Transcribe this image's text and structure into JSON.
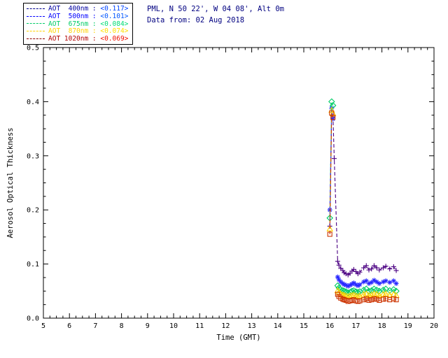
{
  "header": {
    "line1": "PML, N 50 22', W 04 08', Alt 0m",
    "line2": "Data from: 02 Aug 2018",
    "color": "#000080"
  },
  "legend": {
    "entries": [
      {
        "label": "AOT  400nm : ",
        "value": "<0.117>",
        "line_color": "#00008B",
        "label_color": "#0000A0",
        "value_color": "#0044FF"
      },
      {
        "label": "AOT  500nm : ",
        "value": "<0.101>",
        "line_color": "#0000FF",
        "label_color": "#0000FF",
        "value_color": "#0055FF"
      },
      {
        "label": "AOT  675nm : ",
        "value": "<0.084>",
        "line_color": "#00CC66",
        "label_color": "#00CC66",
        "value_color": "#00DD77"
      },
      {
        "label": "AOT  870nm : ",
        "value": "<0.074>",
        "line_color": "#FFD300",
        "label_color": "#FFD300",
        "value_color": "#FFE000"
      },
      {
        "label": "AOT 1020nm : ",
        "value": "<0.069>",
        "line_color": "#8B0000",
        "label_color": "#B00000",
        "value_color": "#EE1100"
      }
    ]
  },
  "chart_data": {
    "type": "line",
    "title": "",
    "xlabel": "Time (GMT)",
    "ylabel": "Aerosol Optical Thickness",
    "xlim": [
      5,
      20
    ],
    "ylim": [
      0.0,
      0.5
    ],
    "grid": false,
    "legend_position": "top-left-outside",
    "xticks": [
      5,
      6,
      7,
      8,
      9,
      10,
      11,
      12,
      13,
      14,
      15,
      16,
      17,
      18,
      19,
      20
    ],
    "xtick_labels": [
      "5",
      "6",
      "7",
      "8",
      "9",
      "10",
      "11",
      "12",
      "13",
      "14",
      "15",
      "16",
      "17",
      "18",
      "19",
      "20"
    ],
    "yticks": [
      0.0,
      0.1,
      0.2,
      0.3,
      0.4,
      0.5
    ],
    "ytick_labels": [
      "0.0",
      "0.1",
      "0.2",
      "0.3",
      "0.4",
      "0.5"
    ],
    "x": [
      16.0,
      16.07,
      16.12,
      16.17,
      16.3,
      16.35,
      16.42,
      16.5,
      16.55,
      16.62,
      16.7,
      16.78,
      16.85,
      16.92,
      17.0,
      17.08,
      17.15,
      17.3,
      17.4,
      17.5,
      17.6,
      17.7,
      17.8,
      17.9,
      18.05,
      18.15,
      18.3,
      18.45,
      18.55
    ],
    "series": [
      {
        "name": "AOT 400nm",
        "mean": "<0.117>",
        "color": "#4B0082",
        "marker": "plus",
        "values": [
          0.17,
          0.38,
          0.372,
          0.295,
          0.105,
          0.098,
          0.092,
          0.088,
          0.084,
          0.082,
          0.08,
          0.083,
          0.087,
          0.09,
          0.086,
          0.082,
          0.085,
          0.093,
          0.097,
          0.089,
          0.091,
          0.097,
          0.093,
          0.089,
          0.093,
          0.096,
          0.091,
          0.095,
          0.088
        ]
      },
      {
        "name": "AOT 500nm",
        "mean": "<0.101>",
        "color": "#2929FF",
        "marker": "asterisk",
        "values": [
          0.2,
          0.388,
          0.368,
          null,
          0.076,
          0.071,
          0.067,
          0.064,
          0.062,
          0.061,
          0.059,
          0.061,
          0.063,
          0.065,
          0.062,
          0.06,
          0.062,
          0.067,
          0.069,
          0.064,
          0.066,
          0.07,
          0.067,
          0.064,
          0.067,
          0.069,
          0.066,
          0.069,
          0.064
        ]
      },
      {
        "name": "AOT 675nm",
        "mean": "<0.084>",
        "color": "#00CC66",
        "marker": "diamond",
        "values": [
          0.185,
          0.4,
          0.393,
          null,
          0.06,
          0.056,
          0.053,
          0.051,
          0.05,
          0.049,
          0.047,
          0.048,
          0.05,
          0.051,
          0.049,
          0.048,
          0.049,
          0.052,
          0.054,
          0.05,
          0.051,
          0.054,
          0.052,
          0.05,
          0.052,
          0.054,
          0.051,
          0.053,
          0.05
        ]
      },
      {
        "name": "AOT 870nm",
        "mean": "<0.074>",
        "color": "#FFD300",
        "marker": "triangle",
        "values": [
          0.165,
          0.384,
          0.378,
          null,
          0.051,
          0.048,
          0.045,
          0.043,
          0.042,
          0.041,
          0.04,
          0.041,
          0.042,
          0.043,
          0.041,
          0.04,
          0.041,
          0.044,
          0.045,
          0.042,
          0.043,
          0.045,
          0.044,
          0.042,
          0.044,
          0.045,
          0.043,
          0.044,
          0.042
        ]
      },
      {
        "name": "AOT 1020nm",
        "mean": "<0.069>",
        "color": "#CC3300",
        "marker": "square",
        "values": [
          0.155,
          0.379,
          0.371,
          null,
          0.044,
          0.04,
          0.037,
          0.035,
          0.034,
          0.033,
          0.031,
          0.032,
          0.033,
          0.034,
          0.032,
          0.031,
          0.032,
          0.034,
          0.036,
          0.033,
          0.034,
          0.036,
          0.035,
          0.033,
          0.035,
          0.036,
          0.034,
          0.036,
          0.034
        ]
      }
    ]
  }
}
